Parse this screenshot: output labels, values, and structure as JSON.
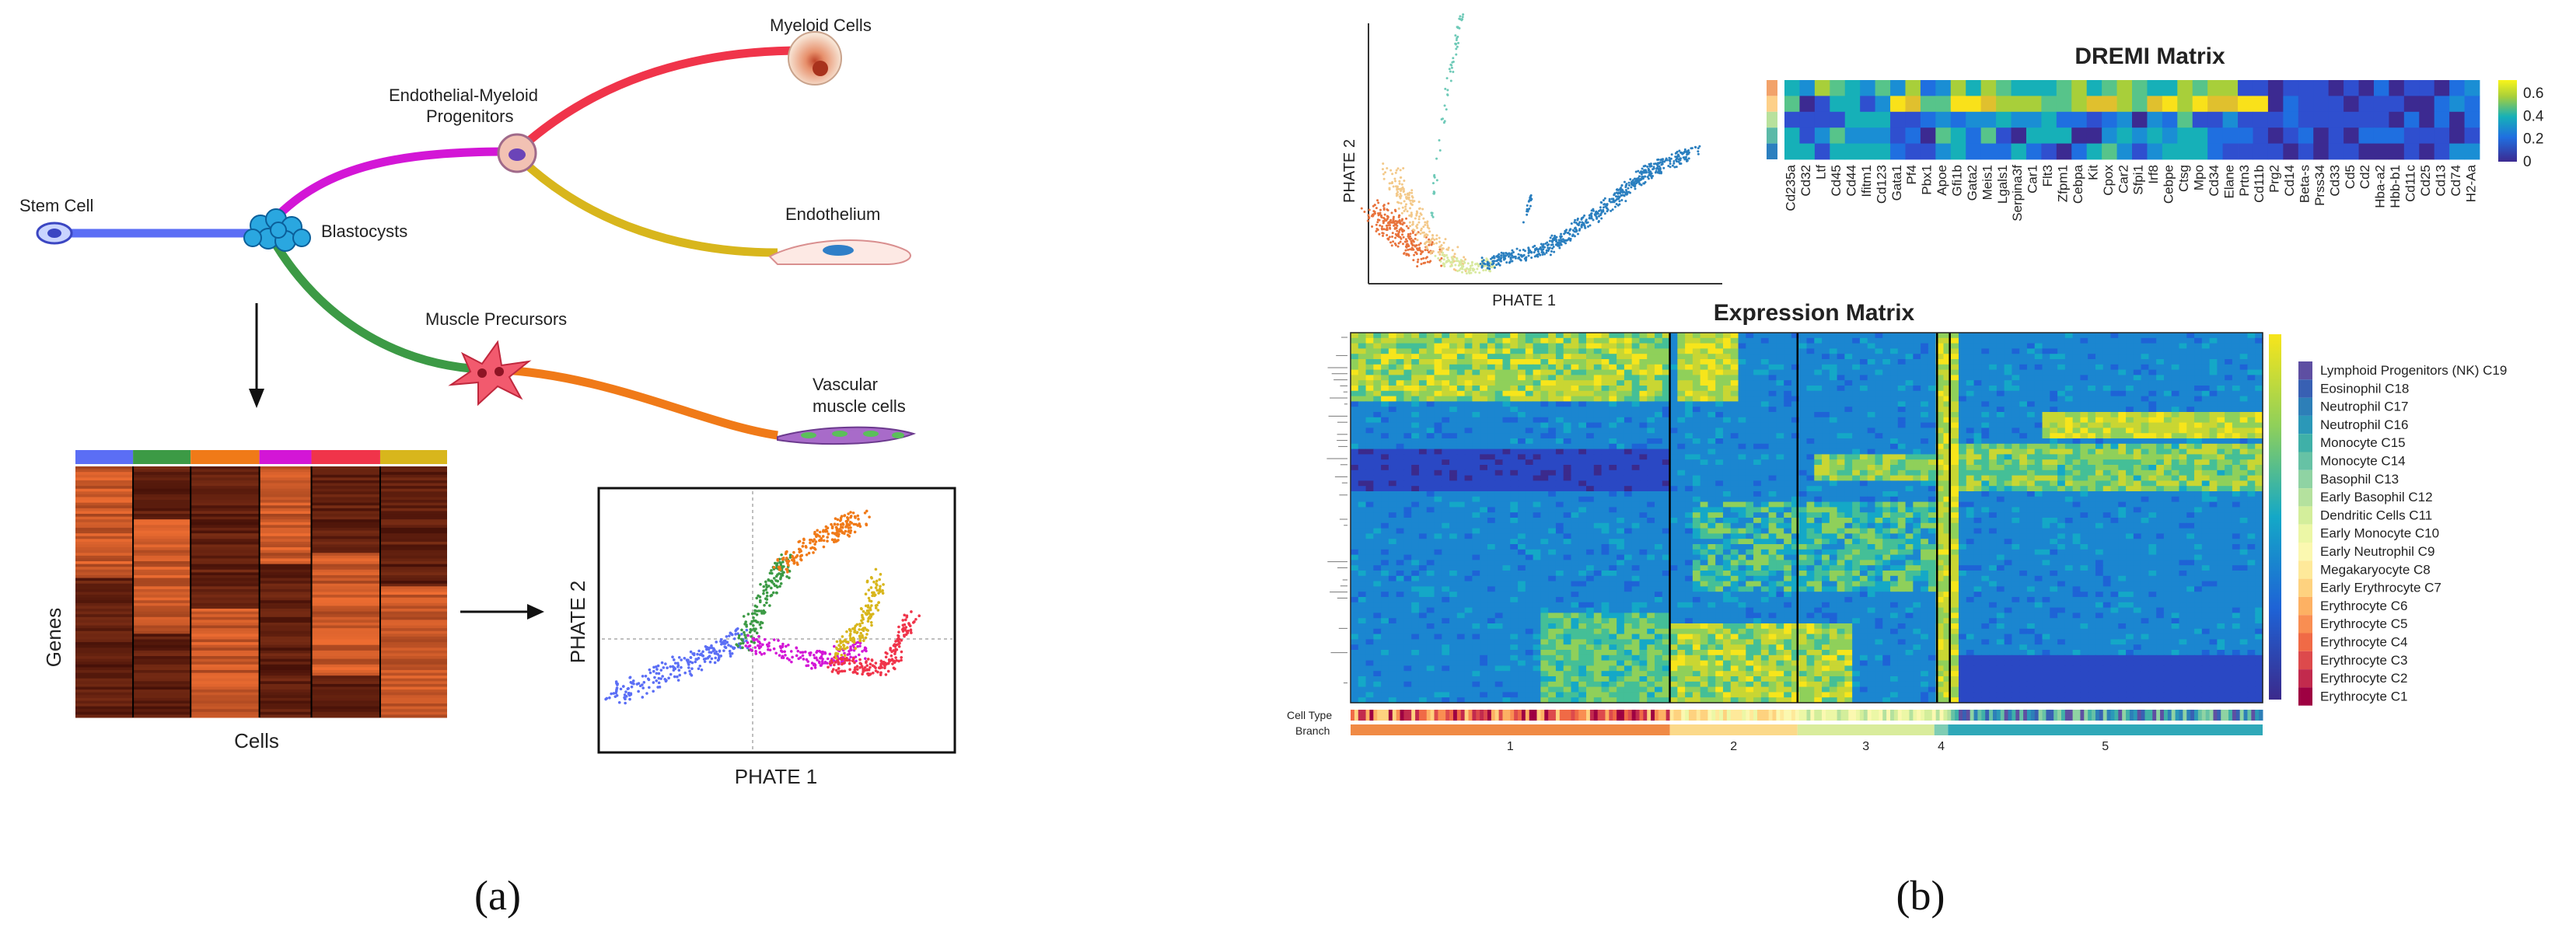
{
  "panel_a": {
    "caption": "(a)",
    "tree": {
      "stem_cell": "Stem Cell",
      "blastocysts": "Blastocysts",
      "endothelial_myeloid": [
        "Endothelial-Myeloid",
        "Progenitors"
      ],
      "myeloid_cells": "Myeloid Cells",
      "endothelium": "Endothelium",
      "muscle_precursors": "Muscle Precursors",
      "vascular_muscle": [
        "Vascular",
        "muscle cells"
      ]
    },
    "heatmap": {
      "ylabel": "Genes",
      "xlabel": "Cells",
      "bar_colors": [
        "#5b6ef5",
        "#3c9a45",
        "#f07a18",
        "#d316d6",
        "#f0344a",
        "#d8b61c"
      ]
    },
    "scatter": {
      "xlabel": "PHATE 1",
      "ylabel": "PHATE 2"
    }
  },
  "panel_b": {
    "caption": "(b)",
    "phate": {
      "xlabel": "PHATE 1",
      "ylabel": "PHATE 2"
    },
    "dremi": {
      "title": "DREMI Matrix",
      "genes": [
        "Cd235a",
        "Cd32",
        "Ltf",
        "Cd45",
        "Cd44",
        "Ifitm1",
        "Cd123",
        "Gata1",
        "Pf4",
        "Pbx1",
        "Apoe",
        "Gfi1b",
        "Gata2",
        "Meis1",
        "Lgals1",
        "Serpina3f",
        "Car1",
        "Flt3",
        "Zfpm1",
        "Cebpa",
        "Kit",
        "Cpox",
        "Car2",
        "Sfpi1",
        "Irf8",
        "Cebpe",
        "Ctsg",
        "Mpo",
        "Cd34",
        "Elane",
        "Prtn3",
        "Cd11b",
        "Prg2",
        "Cd14",
        "Beta-s",
        "Prss34",
        "Cd33",
        "Cd5",
        "Cd2",
        "Hba-a2",
        "Hbb-b1",
        "Cd11c",
        "Cd25",
        "Cd13",
        "Cd74",
        "H2-Aa"
      ],
      "colorbar_ticks": [
        "0.6",
        "0.4",
        "0.2",
        "0"
      ]
    },
    "expression": {
      "title": "Expression Matrix",
      "row_label": "Cell Type",
      "branch_label": "Branch",
      "branches": [
        "1",
        "2",
        "3",
        "4",
        "5"
      ],
      "legend": [
        {
          "label": "Lymphoid Progenitors (NK) C19",
          "color": "#5e4fa2"
        },
        {
          "label": "Eosinophil C18",
          "color": "#3860b3"
        },
        {
          "label": "Neutrophil C17",
          "color": "#2d7fb8"
        },
        {
          "label": "Neutrophil C16",
          "color": "#2b98b8"
        },
        {
          "label": "Monocyte C15",
          "color": "#3fb0a8"
        },
        {
          "label": "Monocyte C14",
          "color": "#66c2a5"
        },
        {
          "label": "Basophil C13",
          "color": "#8fd3a3"
        },
        {
          "label": "Early Basophil C12",
          "color": "#b4e19e"
        },
        {
          "label": "Dendritic Cells C11",
          "color": "#d3ee9b"
        },
        {
          "label": "Early Monocyte C10",
          "color": "#ecf7a6"
        },
        {
          "label": "Early Neutrophil C9",
          "color": "#fbf8b0"
        },
        {
          "label": "Megakaryocyte C8",
          "color": "#fee99a"
        },
        {
          "label": "Early Erythrocyte C7",
          "color": "#fed27f"
        },
        {
          "label": "Erythrocyte C6",
          "color": "#fdb163"
        },
        {
          "label": "Erythrocyte C5",
          "color": "#f98e52"
        },
        {
          "label": "Erythrocyte C4",
          "color": "#f06a46"
        },
        {
          "label": "Erythrocyte C3",
          "color": "#dd4a4c"
        },
        {
          "label": "Erythrocyte C2",
          "color": "#c22a4d"
        },
        {
          "label": "Erythrocyte C1",
          "color": "#9e0142"
        }
      ]
    }
  }
}
